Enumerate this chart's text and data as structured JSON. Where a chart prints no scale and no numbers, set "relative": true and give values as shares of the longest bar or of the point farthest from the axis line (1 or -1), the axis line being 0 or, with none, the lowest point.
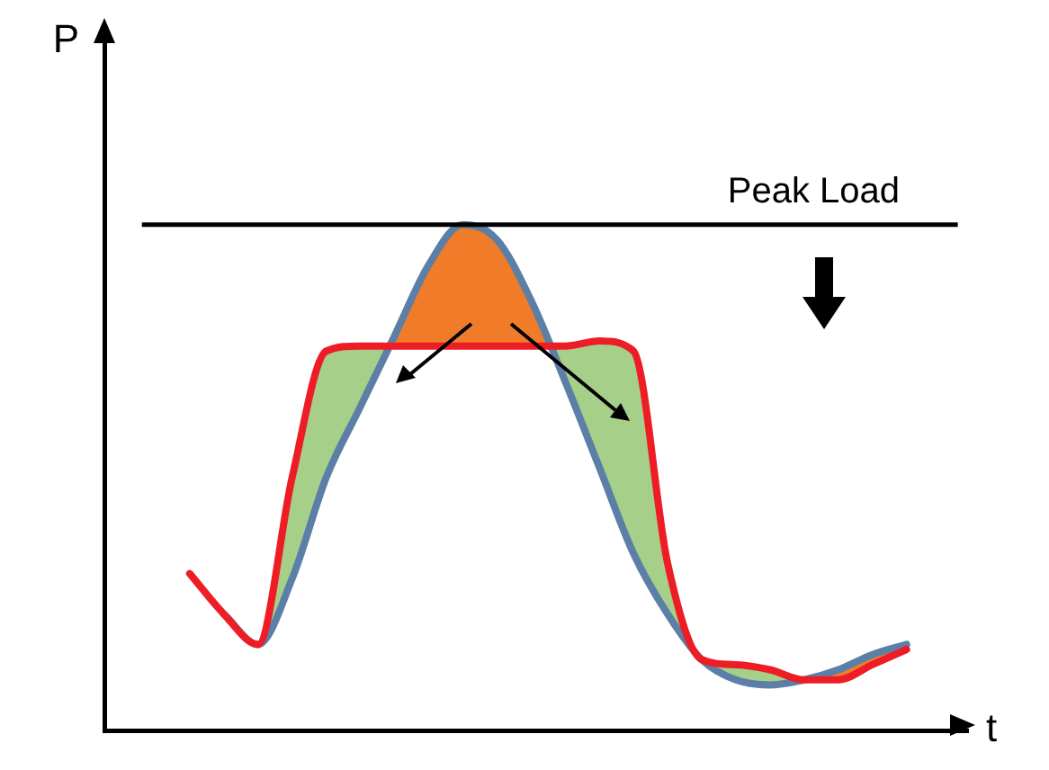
{
  "chart_data": {
    "type": "line",
    "relative": true,
    "xlabel": "t",
    "ylabel": "P",
    "categories": [
      null,
      null,
      null,
      null,
      null,
      null,
      null,
      null,
      null,
      null,
      null,
      null,
      null,
      null,
      null,
      null,
      null,
      null,
      null,
      null,
      null,
      null
    ],
    "series": [
      {
        "color": "#5b7fa6",
        "values": [
          null,
          0.23,
          0.17,
          0.3,
          0.5,
          0.64,
          0.78,
          0.92,
          1,
          0.97,
          0.85,
          0.69,
          0.52,
          0.35,
          0.23,
          0.14,
          0.1,
          0.09,
          0.1,
          0.12,
          0.15,
          0.17
        ]
      },
      {
        "color": "#ee1c24",
        "values": [
          0.31,
          0.23,
          0.17,
          0.5,
          0.75,
          0.76,
          0.76,
          0.76,
          0.76,
          0.76,
          0.76,
          0.76,
          0.77,
          0.75,
          0.33,
          0.14,
          0.13,
          0.12,
          0.1,
          0.1,
          0.13,
          0.16
        ]
      }
    ],
    "ref_lines": [
      {
        "axis": "y",
        "value": 1,
        "label": "Peak Load",
        "color": "#000000"
      }
    ],
    "grid": false,
    "legend": false,
    "marker": "none",
    "line_style": "solid"
  }
}
